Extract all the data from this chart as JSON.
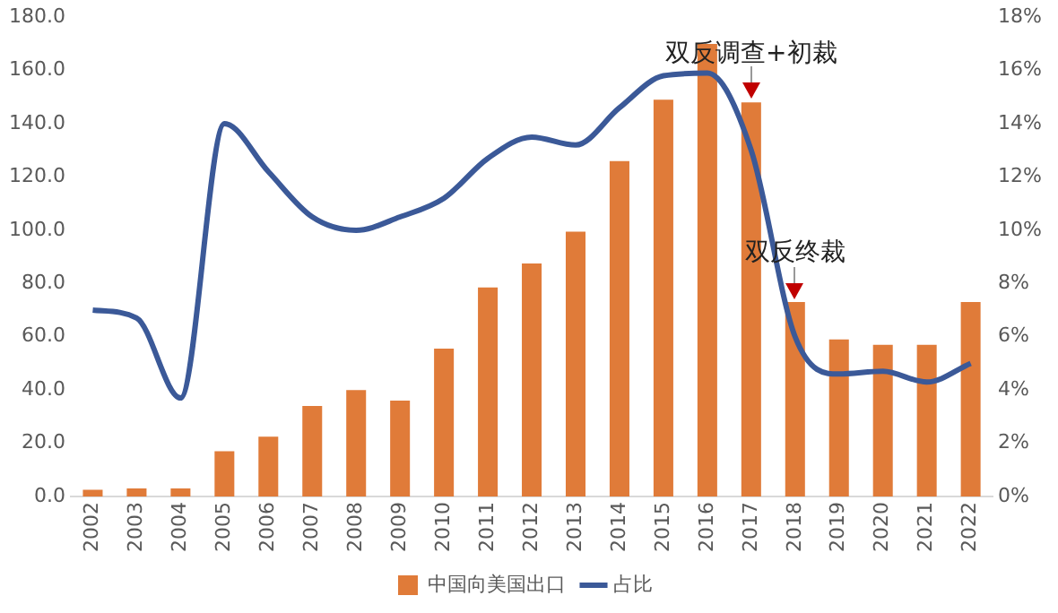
{
  "chart_data": {
    "type": "bar",
    "categories": [
      "2002",
      "2003",
      "2004",
      "2005",
      "2006",
      "2007",
      "2008",
      "2009",
      "2010",
      "2011",
      "2012",
      "2013",
      "2014",
      "2015",
      "2016",
      "2017",
      "2018",
      "2019",
      "2020",
      "2021",
      "2022"
    ],
    "series": [
      {
        "name": "中国向美国出口",
        "color": "#e07b39",
        "values": [
          2.5,
          3,
          3,
          17,
          22.5,
          34,
          40,
          36,
          55.5,
          78.5,
          87.5,
          99.5,
          126,
          149,
          170,
          148,
          73,
          59,
          57,
          57,
          73
        ]
      },
      {
        "name": "占比",
        "type": "line",
        "axis": "y2",
        "color": "#3b5998",
        "values": [
          7.0,
          6.7,
          3.7,
          14.0,
          12.2,
          10.5,
          10.0,
          10.5,
          11.2,
          12.7,
          13.5,
          13.2,
          14.6,
          15.8,
          15.9,
          13.0,
          6.0,
          4.6,
          4.7,
          4.3,
          5.0
        ]
      }
    ],
    "ylim": [
      0,
      180
    ],
    "yticks": [
      {
        "value": 0,
        "label": "0.0"
      },
      {
        "value": 20,
        "label": "20.0"
      },
      {
        "value": 40,
        "label": "40.0"
      },
      {
        "value": 60,
        "label": "60.0"
      },
      {
        "value": 80,
        "label": "80.0"
      },
      {
        "value": 100,
        "label": "100.0"
      },
      {
        "value": 120,
        "label": "120.0"
      },
      {
        "value": 140,
        "label": "140.0"
      },
      {
        "value": 160,
        "label": "160.0"
      },
      {
        "value": 180,
        "label": "180.0"
      }
    ],
    "y2lim": [
      0,
      18
    ],
    "y2ticks": [
      {
        "value": 0,
        "label": "0%"
      },
      {
        "value": 2,
        "label": "2%"
      },
      {
        "value": 4,
        "label": "4%"
      },
      {
        "value": 6,
        "label": "6%"
      },
      {
        "value": 8,
        "label": "8%"
      },
      {
        "value": 10,
        "label": "10%"
      },
      {
        "value": 12,
        "label": "12%"
      },
      {
        "value": 14,
        "label": "14%"
      },
      {
        "value": 16,
        "label": "16%"
      },
      {
        "value": 18,
        "label": "18%"
      }
    ],
    "annotations": [
      {
        "text": "双反调查+初裁",
        "x": "2017",
        "y": 148
      },
      {
        "text": "双反终裁",
        "x": "2018",
        "y": 73
      }
    ],
    "grid": false,
    "legend": "bottom",
    "marker": "none"
  }
}
